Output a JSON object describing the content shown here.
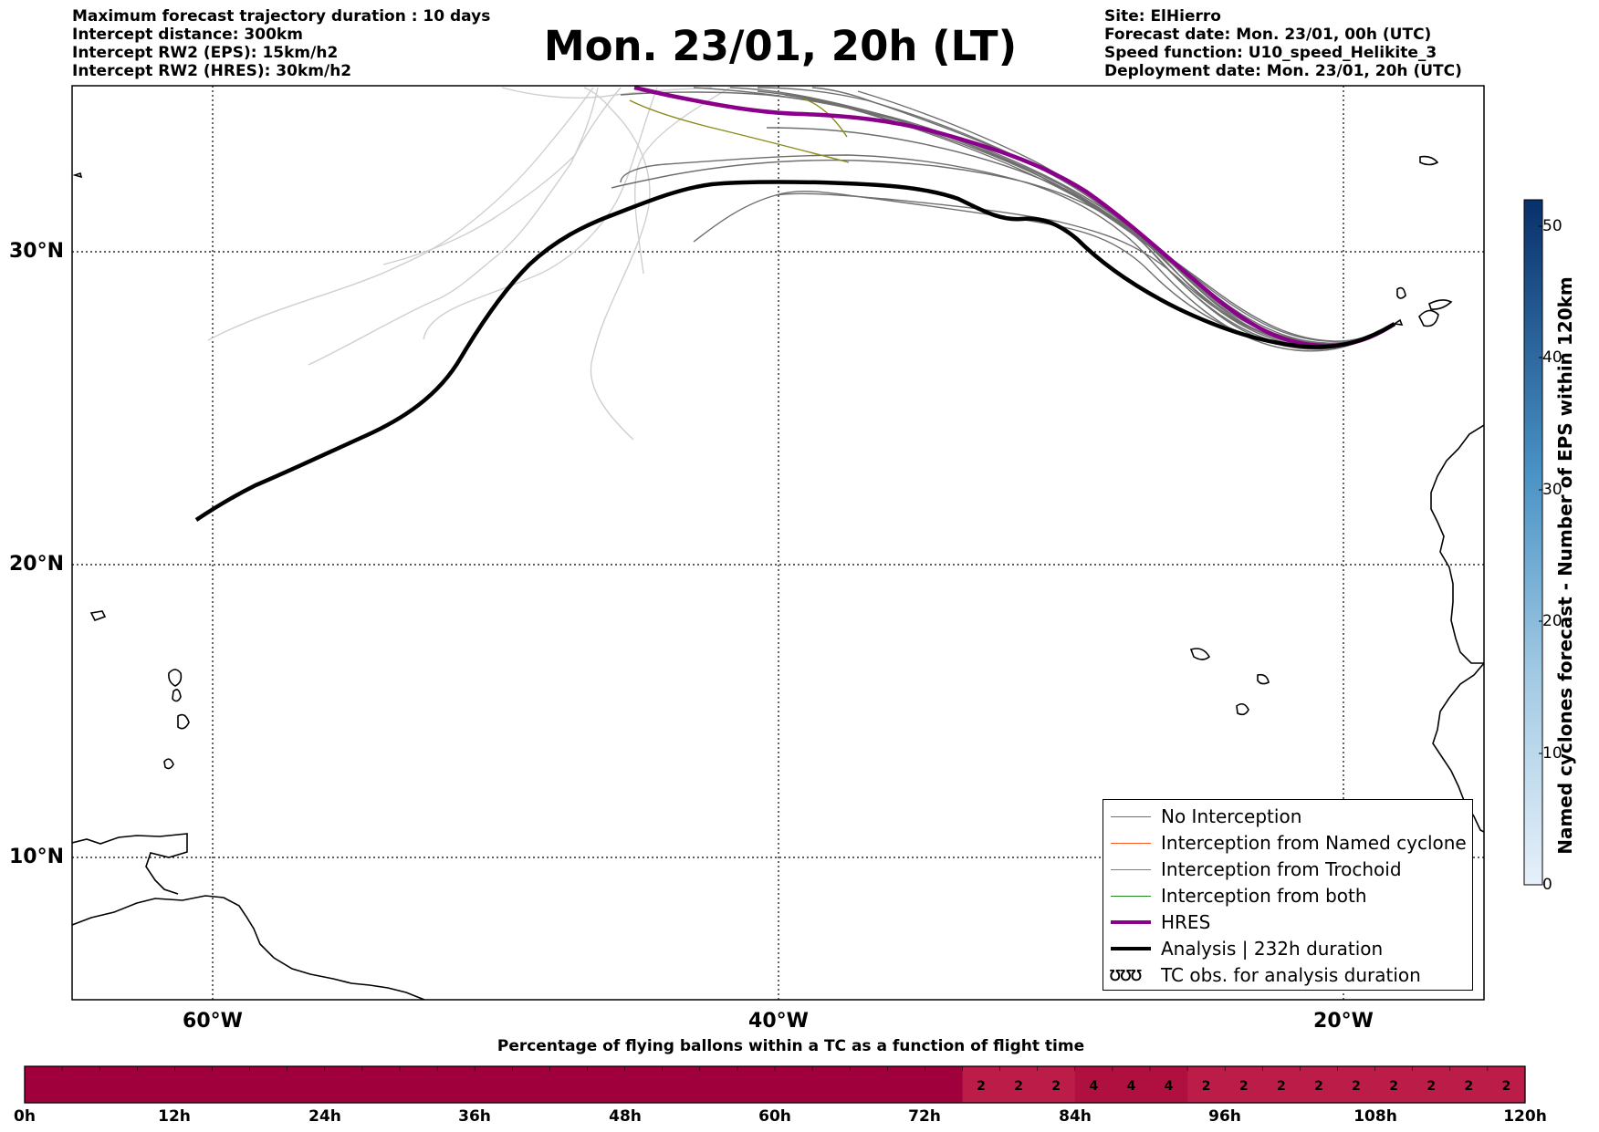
{
  "header": {
    "title": "Mon. 23/01, 20h (LT)",
    "left_lines": [
      "Maximum forecast trajectory duration : 10 days",
      "Intercept distance: 300km",
      "Intercept RW2 (EPS):  15km/h2",
      "Intercept RW2 (HRES): 30km/h2"
    ],
    "right_lines": [
      "Site: ElHierro",
      "Forecast date: Mon. 23/01, 00h (UTC)",
      "Speed function: U10_speed_Helikite_3",
      "Deployment date: Mon. 23/01, 20h (UTC)"
    ]
  },
  "map": {
    "lon_ticks": [
      "60°W",
      "40°W",
      "20°W"
    ],
    "lat_ticks": [
      "30°N",
      "20°N",
      "10°N"
    ],
    "colors": {
      "no_interception": "#6e6e6e",
      "out_of_range": "#cfcfcf",
      "named_cyclone": "#ff5a1e",
      "trochoid": "#8a8a1a",
      "both": "#1f8a1f",
      "hres": "#8b008b",
      "analysis": "#000000"
    }
  },
  "legend": {
    "items": [
      {
        "label": "No Interception",
        "color": "#6e6e6e",
        "style": "thin"
      },
      {
        "label": "Interception from Named cyclone",
        "color": "#ff5a1e",
        "style": "thin"
      },
      {
        "label": "Interception from Trochoid",
        "color": "#8a8a1a",
        "style": "thin"
      },
      {
        "label": "Interception from both",
        "color": "#1f8a1f",
        "style": "thin"
      },
      {
        "label": "HRES",
        "color": "#8b008b",
        "style": "thick"
      },
      {
        "label": "Analysis | 232h duration",
        "color": "#000000",
        "style": "thick"
      },
      {
        "label": "TC obs. for analysis duration",
        "color": "#000000",
        "style": "symbol",
        "symbol": "ʊʊʊ"
      }
    ]
  },
  "colorbar": {
    "label": "Named cyclones forecast - Number of EPS within 120km",
    "ticks": [
      "0",
      "10",
      "20",
      "30",
      "40",
      "50"
    ],
    "range": [
      0,
      52
    ]
  },
  "timeline": {
    "caption": "Percentage of flying ballons within a TC as a function of flight time",
    "tick_labels": [
      "0h",
      "12h",
      "24h",
      "36h",
      "48h",
      "60h",
      "72h",
      "84h",
      "96h",
      "108h",
      "120h"
    ],
    "cell_values": [
      "",
      "",
      "",
      "",
      "",
      "",
      "",
      "",
      "",
      "",
      "",
      "",
      "",
      "",
      "",
      "",
      "",
      "",
      "",
      "",
      "",
      "",
      "",
      "",
      "",
      "2",
      "2",
      "2",
      "4",
      "4",
      "4",
      "2",
      "2",
      "2",
      "2",
      "2",
      "2",
      "2",
      "2",
      "2"
    ]
  }
}
